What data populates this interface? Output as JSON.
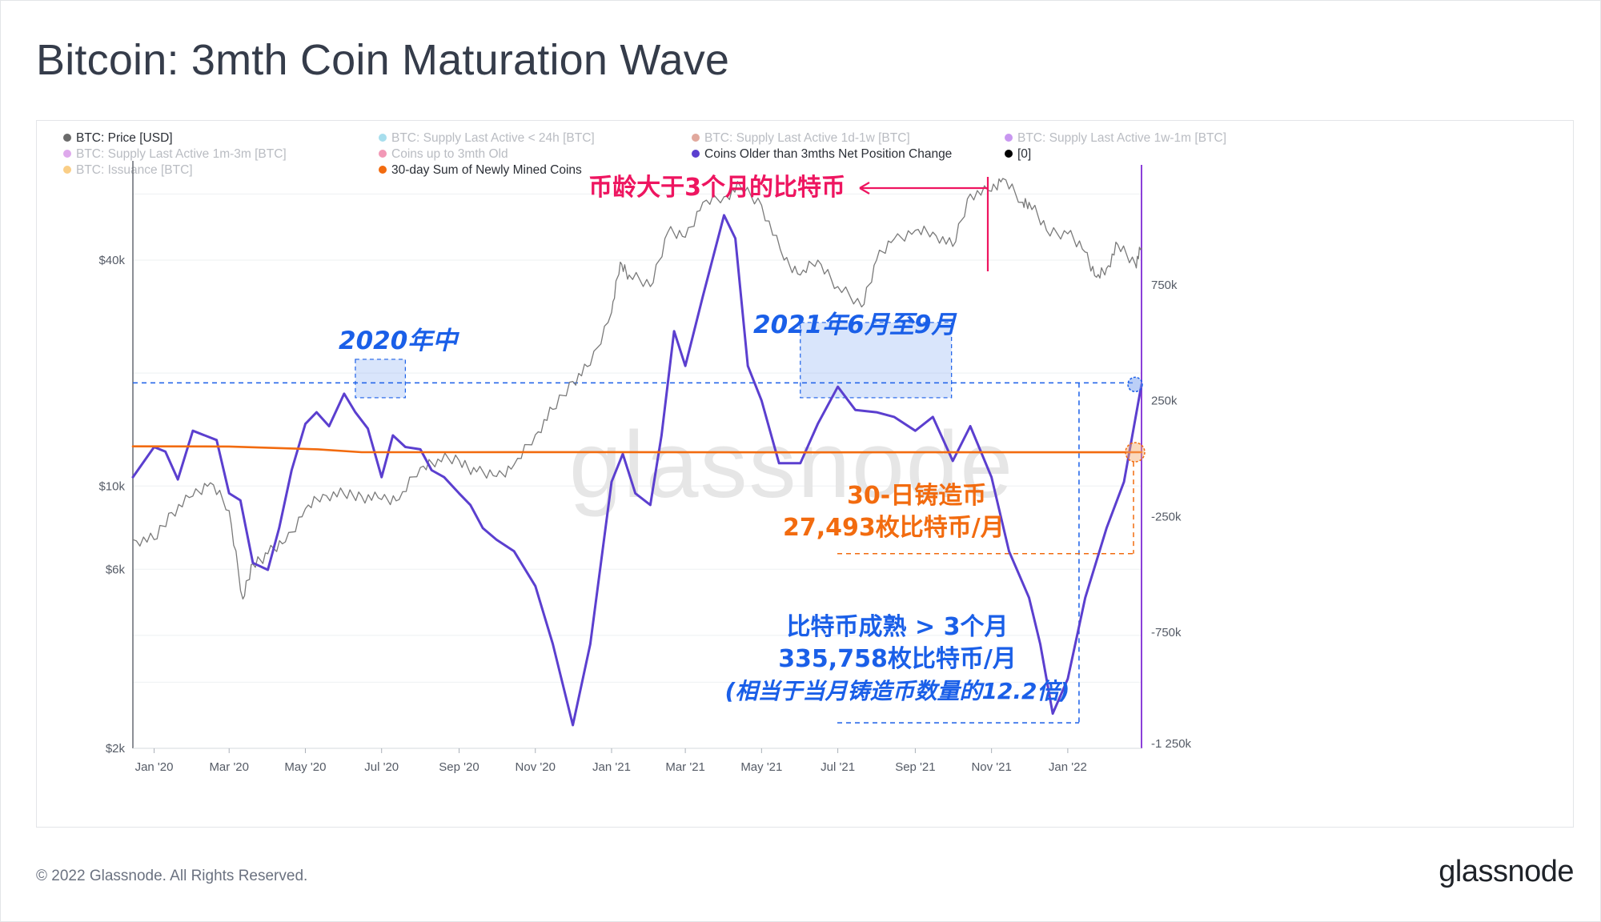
{
  "title": "Bitcoin: 3mth Coin Maturation Wave",
  "footer": {
    "copyright": "© 2022 Glassnode. All Rights Reserved.",
    "logo": "glassnode"
  },
  "watermark": "glassnode",
  "colors": {
    "price": "#7a7a7a",
    "net_position": "#5b3fcf",
    "mined": "#f26b0f",
    "annotation_blue": "#1a5fe8",
    "annotation_red": "#ee1560",
    "annotation_orange": "#f26b0f",
    "right_axis": "#8b3fd9"
  },
  "legend": [
    {
      "label": "BTC: Price [USD]",
      "color": "#6b6b6b",
      "active": true
    },
    {
      "label": "BTC: Supply Last Active < 24h [BTC]",
      "color": "#5ec3de",
      "active": false
    },
    {
      "label": "BTC: Supply Last Active 1d-1w [BTC]",
      "color": "#c9604c",
      "active": false
    },
    {
      "label": "BTC: Supply Last Active 1w-1m [BTC]",
      "color": "#9a42e3",
      "active": false
    },
    {
      "label": "BTC: Supply Last Active 1m-3m [BTC]",
      "color": "#c362dc",
      "active": false
    },
    {
      "label": "Coins up to 3mth Old",
      "color": "#e8437a",
      "active": false
    },
    {
      "label": "Coins Older than 3mths Net Position Change",
      "color": "#5b3fcf",
      "active": true
    },
    {
      "label": "[0]",
      "color": "#000000",
      "active": true
    },
    {
      "label": "BTC: Issuance [BTC]",
      "color": "#f5a623",
      "active": false
    },
    {
      "label": "30-day Sum of Newly Mined Coins",
      "color": "#f26b0f",
      "active": true
    }
  ],
  "annotations": {
    "older_3m": "币龄大于3个月的比特币",
    "mid_2020": "2020年中",
    "jun_sep_2021": "2021年6月至9月",
    "mined_title": "30-日铸造币",
    "mined_value": "27,493枚比特币/月",
    "maturation_title": "比特币成熟 > 3个月",
    "maturation_value": "335,758枚比特币/月",
    "maturation_note": "(相当于当月铸造币数量的12.2倍)"
  },
  "chart_data": {
    "type": "line",
    "x_ticks": [
      "Jan '20",
      "Mar '20",
      "May '20",
      "Jul '20",
      "Sep '20",
      "Nov '20",
      "Jan '21",
      "Mar '21",
      "May '21",
      "Jul '21",
      "Sep '21",
      "Nov '21",
      "Jan '22"
    ],
    "x_range": [
      "2019-12-15",
      "2022-03-01"
    ],
    "left_axis": {
      "scale": "log",
      "ticks": [
        "$2k",
        "$6k",
        "$10k",
        "$40k"
      ],
      "range": [
        2000,
        70000
      ]
    },
    "right_axis": {
      "scale": "linear",
      "ticks": [
        "750k",
        "250k",
        "-250k",
        "-750k",
        "-1 250k"
      ],
      "range": [
        -1250000,
        1250000
      ]
    },
    "series": [
      {
        "name": "BTC: Price [USD]",
        "axis": "left",
        "x": [
          "2019-12-15",
          "2020-01-01",
          "2020-01-15",
          "2020-02-01",
          "2020-02-15",
          "2020-03-01",
          "2020-03-12",
          "2020-03-20",
          "2020-04-01",
          "2020-04-15",
          "2020-05-01",
          "2020-05-15",
          "2020-06-01",
          "2020-06-15",
          "2020-07-01",
          "2020-07-15",
          "2020-08-01",
          "2020-08-15",
          "2020-09-01",
          "2020-09-15",
          "2020-10-01",
          "2020-10-15",
          "2020-11-01",
          "2020-11-15",
          "2020-12-01",
          "2020-12-15",
          "2021-01-01",
          "2021-01-08",
          "2021-01-15",
          "2021-02-01",
          "2021-02-15",
          "2021-03-01",
          "2021-03-15",
          "2021-04-01",
          "2021-04-14",
          "2021-05-01",
          "2021-05-19",
          "2021-06-01",
          "2021-06-15",
          "2021-07-01",
          "2021-07-20",
          "2021-08-01",
          "2021-08-15",
          "2021-09-01",
          "2021-09-15",
          "2021-10-01",
          "2021-10-15",
          "2021-11-01",
          "2021-11-10",
          "2021-11-25",
          "2021-12-01",
          "2021-12-15",
          "2022-01-01",
          "2022-01-15",
          "2022-01-24",
          "2022-02-01",
          "2022-02-10",
          "2022-02-24",
          "2022-03-01"
        ],
        "y": [
          7200,
          7200,
          8500,
          9400,
          10200,
          8600,
          5000,
          6200,
          6600,
          7100,
          8700,
          9500,
          9500,
          9400,
          9200,
          9200,
          11200,
          11800,
          11700,
          10900,
          10600,
          11400,
          13700,
          16000,
          19000,
          21000,
          29000,
          39500,
          36500,
          34000,
          47500,
          46000,
          57000,
          59000,
          63000,
          56000,
          40000,
          36500,
          40000,
          34000,
          30000,
          40000,
          45500,
          48000,
          47500,
          43500,
          60000,
          61000,
          66000,
          57000,
          57000,
          48000,
          47000,
          42000,
          36000,
          38000,
          44000,
          39000,
          43000
        ]
      },
      {
        "name": "Coins Older than 3mths Net Position Change",
        "axis": "right",
        "x": [
          "2019-12-15",
          "2020-01-01",
          "2020-01-10",
          "2020-01-20",
          "2020-02-01",
          "2020-02-20",
          "2020-03-01",
          "2020-03-10",
          "2020-03-20",
          "2020-04-01",
          "2020-04-10",
          "2020-04-20",
          "2020-05-01",
          "2020-05-10",
          "2020-05-20",
          "2020-06-01",
          "2020-06-10",
          "2020-06-20",
          "2020-07-01",
          "2020-07-10",
          "2020-07-20",
          "2020-08-01",
          "2020-08-10",
          "2020-08-20",
          "2020-09-01",
          "2020-09-10",
          "2020-09-20",
          "2020-10-01",
          "2020-10-15",
          "2020-11-01",
          "2020-11-15",
          "2020-12-01",
          "2020-12-15",
          "2021-01-01",
          "2021-01-10",
          "2021-01-20",
          "2021-02-01",
          "2021-02-10",
          "2021-02-20",
          "2021-03-01",
          "2021-03-15",
          "2021-04-01",
          "2021-04-10",
          "2021-04-20",
          "2021-05-01",
          "2021-05-15",
          "2021-06-01",
          "2021-06-15",
          "2021-07-01",
          "2021-07-15",
          "2021-08-01",
          "2021-08-15",
          "2021-09-01",
          "2021-09-15",
          "2021-10-01",
          "2021-10-15",
          "2021-11-01",
          "2021-11-15",
          "2021-12-01",
          "2021-12-10",
          "2021-12-20",
          "2022-01-01",
          "2022-01-15",
          "2022-02-01",
          "2022-02-15",
          "2022-03-01"
        ],
        "y": [
          -80000,
          50000,
          30000,
          -90000,
          120000,
          80000,
          -150000,
          -180000,
          -450000,
          -480000,
          -300000,
          -50000,
          150000,
          200000,
          140000,
          280000,
          200000,
          130000,
          -80000,
          100000,
          50000,
          40000,
          -50000,
          -80000,
          -150000,
          -200000,
          -300000,
          -350000,
          -400000,
          -550000,
          -800000,
          -1150000,
          -800000,
          -100000,
          20000,
          -150000,
          -200000,
          100000,
          550000,
          400000,
          700000,
          1050000,
          950000,
          400000,
          250000,
          -20000,
          -20000,
          150000,
          310000,
          210000,
          200000,
          180000,
          120000,
          180000,
          -10000,
          140000,
          -80000,
          -400000,
          -600000,
          -800000,
          -1100000,
          -950000,
          -600000,
          -300000,
          -100000,
          320000
        ]
      },
      {
        "name": "30-day Sum of Newly Mined Coins",
        "axis": "right",
        "x": [
          "2019-12-15",
          "2020-03-01",
          "2020-05-11",
          "2020-06-15",
          "2020-09-01",
          "2021-01-01",
          "2021-06-01",
          "2021-09-01",
          "2022-01-01",
          "2022-03-01"
        ],
        "y": [
          53000,
          52000,
          40000,
          27500,
          27700,
          27800,
          27000,
          27400,
          27300,
          27493
        ]
      },
      {
        "name": "[0]",
        "axis": "right",
        "x": [
          "2019-12-15",
          "2022-03-01"
        ],
        "y": [
          0,
          0
        ]
      }
    ]
  }
}
